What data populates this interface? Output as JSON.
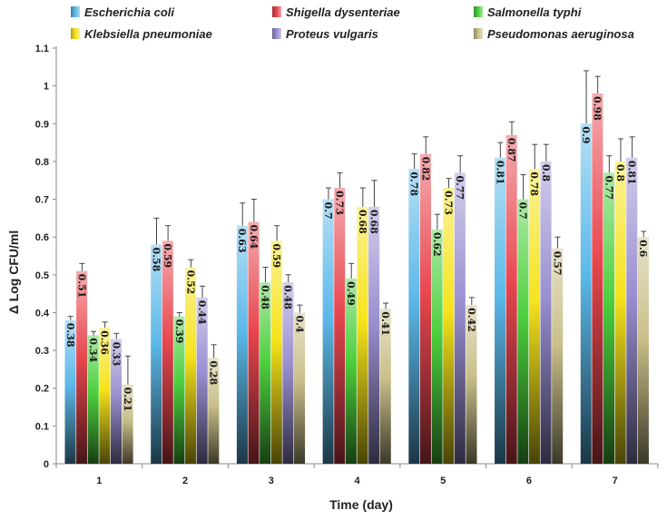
{
  "chart_data": {
    "type": "bar",
    "title": "",
    "xlabel": "Time (day)",
    "ylabel": "Δ Log  CFU/ml",
    "ylim": [
      0,
      1.1
    ],
    "yticks": [
      "0",
      "0.1",
      "0.2",
      "0.3",
      "0.4",
      "0.5",
      "0.6",
      "0.7",
      "0.8",
      "0.9",
      "1",
      "1.1"
    ],
    "categories": [
      "1",
      "2",
      "3",
      "4",
      "5",
      "6",
      "7"
    ],
    "legend_position": "top",
    "grid": false,
    "series": [
      {
        "name": "Escherichia coli",
        "color": "#5bb8e8",
        "values": [
          0.38,
          0.58,
          0.63,
          0.7,
          0.78,
          0.81,
          0.9
        ],
        "errors": [
          0.01,
          0.07,
          0.06,
          0.03,
          0.04,
          0.04,
          0.14
        ],
        "labels": [
          "0.38",
          "0.58",
          "0.63",
          "0.7",
          "0.78",
          "0.81",
          "0.9"
        ]
      },
      {
        "name": "Shigella dysenteriae",
        "color": "#e8474f",
        "values": [
          0.51,
          0.59,
          0.64,
          0.73,
          0.82,
          0.87,
          0.98
        ],
        "errors": [
          0.02,
          0.04,
          0.06,
          0.04,
          0.045,
          0.035,
          0.045
        ],
        "labels": [
          "0.51",
          "0.59",
          "0.64",
          "0.73",
          "0.82",
          "0.87",
          "0.98"
        ]
      },
      {
        "name": "Salmonella typhi",
        "color": "#4ccf3c",
        "values": [
          0.34,
          0.39,
          0.48,
          0.49,
          0.62,
          0.7,
          0.77
        ],
        "errors": [
          0.01,
          0.01,
          0.04,
          0.04,
          0.04,
          0.065,
          0.045
        ],
        "labels": [
          "0.34",
          "0.39",
          "0.48",
          "0.49",
          "0.62",
          "0.7",
          "0.77"
        ]
      },
      {
        "name": "Klebsiella pneumoniae",
        "color": "#f6e31b",
        "values": [
          0.36,
          0.52,
          0.59,
          0.68,
          0.73,
          0.78,
          0.8
        ],
        "errors": [
          0.015,
          0.02,
          0.04,
          0.05,
          0.025,
          0.065,
          0.06
        ],
        "labels": [
          "0.36",
          "0.52",
          "0.59",
          "0.68",
          "0.73",
          "0.78",
          "0.8"
        ]
      },
      {
        "name": "Proteus vulgaris",
        "color": "#9a8fd1",
        "values": [
          0.33,
          0.44,
          0.48,
          0.68,
          0.77,
          0.8,
          0.81
        ],
        "errors": [
          0.015,
          0.03,
          0.02,
          0.07,
          0.045,
          0.045,
          0.055
        ],
        "labels": [
          "0.33",
          "0.44",
          "0.48",
          "0.68",
          "0.77",
          "0.8",
          "0.81"
        ]
      },
      {
        "name": "Pseudomonas aeruginosa",
        "color": "#c9bf8a",
        "values": [
          0.21,
          0.28,
          0.4,
          0.41,
          0.42,
          0.57,
          0.6
        ],
        "errors": [
          0.075,
          0.035,
          0.02,
          0.015,
          0.02,
          0.03,
          0.015
        ],
        "labels": [
          "0.21",
          "0.28",
          "0.4",
          "0.41",
          "0.42",
          "0.57",
          "0.6"
        ]
      }
    ]
  }
}
